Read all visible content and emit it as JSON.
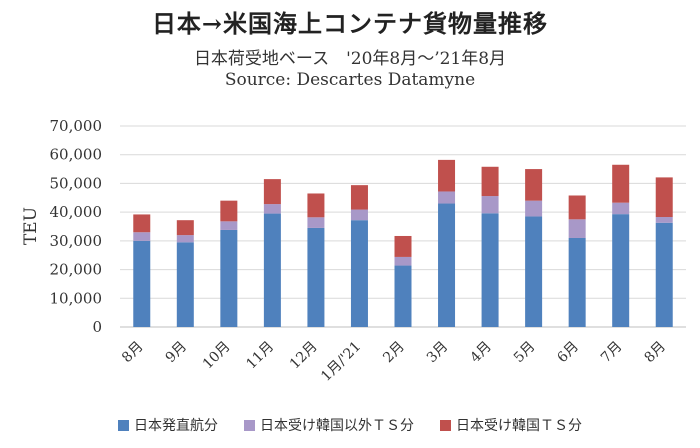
{
  "chart_data": {
    "type": "bar",
    "stacked": true,
    "title": "日本→米国海上コンテナ貨物量推移",
    "subtitle": "日本荷受地ベース　'20年8月～’21年8月",
    "source": "Source: Descartes Datamyne",
    "ylabel": "TEU",
    "xlabel": "",
    "ylim": [
      0,
      70000
    ],
    "yticks": [
      "0",
      "10,000",
      "20,000",
      "30,000",
      "40,000",
      "50,000",
      "60,000",
      "70,000"
    ],
    "grid": true,
    "legend_position": "bottom",
    "categories": [
      "8月",
      "9月",
      "10月",
      "11月",
      "12月",
      "1月/'21",
      "2月",
      "3月",
      "4月",
      "5月",
      "6月",
      "7月",
      "8月"
    ],
    "series": [
      {
        "name": "日本発直航分",
        "color": "#4f81bd",
        "values": [
          30000,
          29500,
          33800,
          39500,
          34500,
          37200,
          21400,
          43000,
          39600,
          38500,
          31000,
          39300,
          36300
        ]
      },
      {
        "name": "日本受け韓国以外ＴＳ分",
        "color": "#a898c8",
        "values": [
          3000,
          2500,
          3000,
          3300,
          3700,
          3700,
          3000,
          4200,
          6000,
          5500,
          6500,
          4000,
          2000
        ]
      },
      {
        "name": "日本受け韓国ＴＳ分",
        "color": "#c0504d",
        "values": [
          6200,
          5200,
          7200,
          8700,
          8300,
          8500,
          7300,
          11000,
          10200,
          11000,
          8300,
          13200,
          13800
        ]
      }
    ]
  }
}
